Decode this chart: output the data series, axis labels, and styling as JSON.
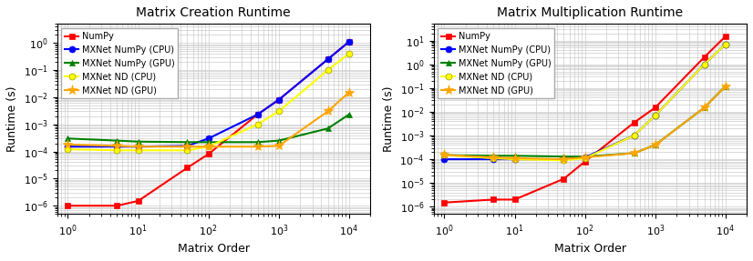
{
  "x_values": [
    1,
    5,
    10,
    50,
    100,
    500,
    1000,
    5000,
    10000
  ],
  "creation": {
    "title": "Matrix Creation Runtime",
    "numpy": [
      1e-06,
      1e-06,
      1.5e-06,
      2.5e-05,
      8e-05,
      0.0023,
      0.008,
      0.25,
      1.1
    ],
    "mxnet_numpy_cpu": [
      0.00015,
      0.00015,
      0.00015,
      0.00016,
      0.0003,
      0.0023,
      0.008,
      0.25,
      1.1
    ],
    "mxnet_numpy_gpu": [
      0.0003,
      0.00025,
      0.00023,
      0.00022,
      0.00022,
      0.00022,
      0.00025,
      0.0007,
      0.0023
    ],
    "mxnet_nd_cpu": [
      0.00012,
      0.00011,
      0.00011,
      0.00011,
      0.00015,
      0.001,
      0.003,
      0.1,
      0.4
    ],
    "mxnet_nd_gpu": [
      0.00018,
      0.00016,
      0.00015,
      0.00015,
      0.00015,
      0.00015,
      0.00016,
      0.003,
      0.015
    ]
  },
  "multiplication": {
    "title": "Matrix Multiplication Runtime",
    "numpy": [
      1.5e-06,
      2e-06,
      2e-06,
      1.5e-05,
      8e-05,
      0.0035,
      0.015,
      2.0,
      15.0
    ],
    "mxnet_numpy_cpu": [
      0.0001,
      0.0001,
      0.0001,
      0.0001,
      0.00012,
      0.001,
      0.007,
      1.0,
      7.0
    ],
    "mxnet_numpy_gpu": [
      0.00015,
      0.00014,
      0.00014,
      0.00013,
      0.00013,
      0.00018,
      0.0004,
      0.015,
      0.12
    ],
    "mxnet_nd_cpu": [
      0.00015,
      0.00011,
      0.0001,
      9e-05,
      0.00011,
      0.001,
      0.007,
      1.0,
      7.0
    ],
    "mxnet_nd_gpu": [
      0.00015,
      0.00012,
      0.00011,
      0.0001,
      0.00012,
      0.00018,
      0.0004,
      0.015,
      0.12
    ]
  },
  "colors": {
    "numpy": "#ff0000",
    "mxnet_numpy_cpu": "#0000ff",
    "mxnet_numpy_gpu": "#008000",
    "mxnet_nd_cpu": "#ffff00",
    "mxnet_nd_gpu": "#ffa500"
  },
  "markers": {
    "numpy": "s",
    "mxnet_numpy_cpu": "o",
    "mxnet_numpy_gpu": "^",
    "mxnet_nd_cpu": "o",
    "mxnet_nd_gpu": "*"
  },
  "marker_sizes": {
    "numpy": 5,
    "mxnet_numpy_cpu": 5,
    "mxnet_numpy_gpu": 5,
    "mxnet_nd_cpu": 5,
    "mxnet_nd_gpu": 8
  },
  "legend_labels": {
    "numpy": "NumPy",
    "mxnet_numpy_cpu": "MXNet NumPy (CPU)",
    "mxnet_numpy_gpu": "MXNet NumPy (GPU)",
    "mxnet_nd_cpu": "MXNet ND (CPU)",
    "mxnet_nd_gpu": "MXNet ND (GPU)"
  },
  "ylabel": "Runtime (s)",
  "xlabel": "Matrix Order",
  "ylim_creation": [
    5e-07,
    5
  ],
  "ylim_multiplication": [
    5e-07,
    50.0
  ],
  "xlim": [
    0.7,
    20000.0
  ],
  "background_color": "#ffffff",
  "grid_color": "#cccccc",
  "linewidth": 1.5,
  "title_fontsize": 10,
  "label_fontsize": 9,
  "tick_fontsize": 8,
  "legend_fontsize": 7
}
